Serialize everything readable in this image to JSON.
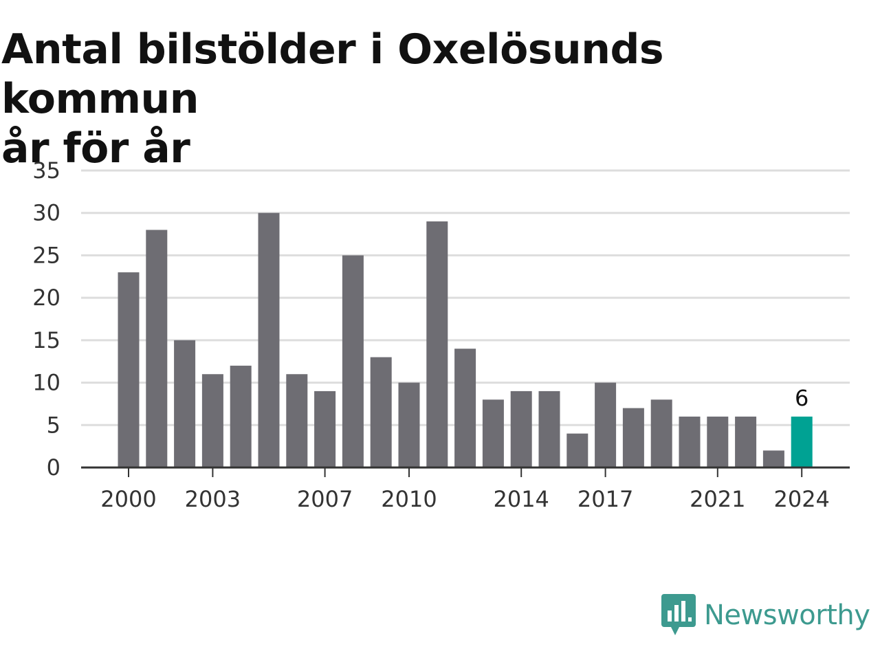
{
  "chart_data": {
    "type": "bar",
    "title_lines": [
      "Antal bilstölder i Oxelösunds kommun",
      "år för år"
    ],
    "categories": [
      "2000",
      "2001",
      "2002",
      "2003",
      "2004",
      "2005",
      "2006",
      "2007",
      "2008",
      "2009",
      "2010",
      "2011",
      "2012",
      "2013",
      "2014",
      "2015",
      "2016",
      "2017",
      "2018",
      "2019",
      "2020",
      "2021",
      "2022",
      "2023",
      "2024"
    ],
    "values": [
      23,
      28,
      15,
      11,
      12,
      30,
      11,
      9,
      25,
      13,
      10,
      29,
      14,
      8,
      9,
      9,
      4,
      10,
      7,
      8,
      6,
      6,
      6,
      2,
      6
    ],
    "xticks": [
      "2000",
      "2003",
      "2007",
      "2010",
      "2014",
      "2017",
      "2021",
      "2024"
    ],
    "yticks": [
      0,
      5,
      10,
      15,
      20,
      25,
      30,
      35
    ],
    "ylim": [
      0,
      35
    ],
    "xlabel": "",
    "ylabel": "",
    "grid": true,
    "highlight": {
      "category": "2024",
      "label": "6"
    },
    "colors": {
      "bar": "#6e6d73",
      "highlight": "#00a293",
      "grid": "#dddddd",
      "axis": "#333333"
    }
  },
  "brand": {
    "name": "Newsworthy",
    "icon": "newsworthy-logo-icon",
    "color": "#3d9a8f"
  }
}
